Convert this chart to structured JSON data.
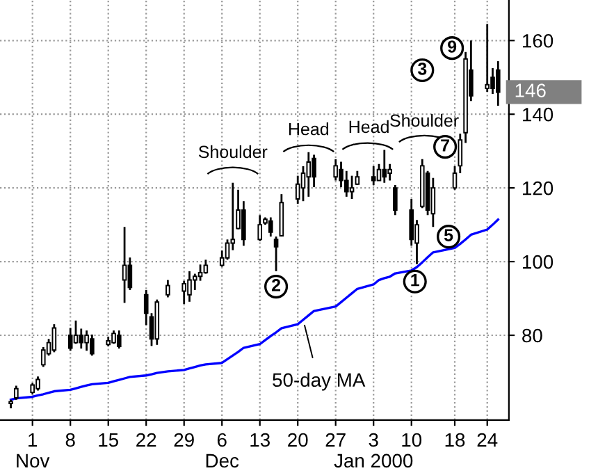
{
  "chart_data": {
    "type": "candlestick",
    "x": [
      "1999-10-28",
      "1999-10-29",
      "1999-11-01",
      "1999-11-02",
      "1999-11-03",
      "1999-11-04",
      "1999-11-05",
      "1999-11-08",
      "1999-11-09",
      "1999-11-10",
      "1999-11-11",
      "1999-11-12",
      "1999-11-15",
      "1999-11-16",
      "1999-11-17",
      "1999-11-18",
      "1999-11-19",
      "1999-11-22",
      "1999-11-23",
      "1999-11-24",
      "1999-11-26",
      "1999-11-29",
      "1999-11-30",
      "1999-12-01",
      "1999-12-02",
      "1999-12-03",
      "1999-12-06",
      "1999-12-07",
      "1999-12-08",
      "1999-12-09",
      "1999-12-10",
      "1999-12-13",
      "1999-12-14",
      "1999-12-15",
      "1999-12-16",
      "1999-12-17",
      "1999-12-20",
      "1999-12-21",
      "1999-12-22",
      "1999-12-23",
      "1999-12-27",
      "1999-12-28",
      "1999-12-29",
      "1999-12-30",
      "1999-12-31",
      "2000-01-03",
      "2000-01-04",
      "2000-01-05",
      "2000-01-06",
      "2000-01-07",
      "2000-01-10",
      "2000-01-11",
      "2000-01-12",
      "2000-01-13",
      "2000-01-14",
      "2000-01-18",
      "2000-01-19",
      "2000-01-20",
      "2000-01-21",
      "2000-01-24",
      "2000-01-25",
      "2000-01-26"
    ],
    "ohlc": [
      [
        61.5,
        62.5,
        60.2,
        62
      ],
      [
        63,
        66.3,
        62.5,
        65.5
      ],
      [
        64.5,
        67,
        64,
        66.5
      ],
      [
        65.5,
        68.8,
        65,
        68
      ],
      [
        72,
        76.8,
        71.4,
        76
      ],
      [
        75,
        79,
        74.5,
        78
      ],
      [
        76,
        83,
        75.4,
        82
      ],
      [
        80,
        82,
        75.8,
        76.5
      ],
      [
        78,
        84,
        77.7,
        80
      ],
      [
        80,
        81.8,
        76.4,
        78
      ],
      [
        78,
        81.3,
        75.8,
        80
      ],
      [
        79,
        80.2,
        74.5,
        75
      ],
      [
        77.5,
        79.6,
        77,
        78.5
      ],
      [
        78,
        81.3,
        77.7,
        80.5
      ],
      [
        80,
        81.3,
        76.4,
        77
      ],
      [
        95,
        109.4,
        88.8,
        99
      ],
      [
        99,
        101.1,
        92.3,
        93
      ],
      [
        91,
        92.3,
        82.8,
        86
      ],
      [
        85,
        86,
        77.1,
        79
      ],
      [
        79,
        89.7,
        77.4,
        89
      ],
      [
        91,
        95,
        90.3,
        93.5
      ],
      [
        92,
        94.8,
        88.5,
        94
      ],
      [
        91,
        97.4,
        89.1,
        95
      ],
      [
        95,
        96.7,
        92.3,
        96
      ],
      [
        96,
        99.2,
        94.8,
        97
      ],
      [
        97,
        100.5,
        96.7,
        99
      ],
      [
        99,
        103,
        98.6,
        101
      ],
      [
        101,
        106,
        100.5,
        105
      ],
      [
        105,
        121.4,
        103.1,
        106
      ],
      [
        109,
        119.5,
        108.8,
        114
      ],
      [
        114,
        116.4,
        104.3,
        106
      ],
      [
        106,
        112.6,
        105.6,
        110
      ],
      [
        110.5,
        112,
        110,
        111.5
      ],
      [
        111,
        112,
        106.8,
        108
      ],
      [
        106,
        106.8,
        97.4,
        104
      ],
      [
        107,
        118.3,
        106.8,
        116
      ],
      [
        117,
        123.3,
        115.7,
        121
      ],
      [
        120,
        125.9,
        116.4,
        124
      ],
      [
        123,
        129.7,
        117.6,
        127
      ],
      [
        128,
        129,
        120.2,
        123
      ],
      [
        123,
        127.8,
        122,
        126
      ],
      [
        125,
        127.1,
        120.2,
        122
      ],
      [
        122,
        124.6,
        117.6,
        119
      ],
      [
        119,
        123.3,
        117,
        120
      ],
      [
        121,
        124.6,
        120.8,
        123
      ],
      [
        123,
        125.9,
        120.8,
        122
      ],
      [
        122,
        126.5,
        122,
        125
      ],
      [
        125,
        130.3,
        121.4,
        123
      ],
      [
        124,
        126.5,
        122,
        125
      ],
      [
        120,
        120.8,
        112.6,
        114
      ],
      [
        114,
        117,
        104.3,
        106
      ],
      [
        105,
        111.3,
        99.3,
        110
      ],
      [
        115,
        127.8,
        114.5,
        126
      ],
      [
        124,
        124.6,
        112.6,
        114
      ],
      [
        113,
        122.7,
        109.4,
        120
      ],
      [
        120,
        125.9,
        119.5,
        124
      ],
      [
        126,
        134.7,
        124,
        133
      ],
      [
        135,
        156.9,
        132.2,
        155
      ],
      [
        152,
        160,
        143.6,
        145
      ],
      [
        147,
        164.5,
        146.1,
        148
      ],
      [
        150,
        152.5,
        145.5,
        147
      ],
      [
        152,
        154.4,
        142.3,
        146
      ]
    ],
    "color": "#000000",
    "series": [
      {
        "type": "line",
        "color": "#0000ff",
        "values": [
          62.5,
          62.9,
          63.3,
          63.7,
          64.0,
          64.4,
          64.8,
          65.2,
          65.6,
          66.0,
          66.4,
          66.7,
          67.1,
          67.5,
          67.9,
          68.3,
          68.7,
          69.1,
          69.4,
          69.8,
          70.2,
          70.6,
          71.0,
          71.4,
          71.8,
          72.1,
          72.5,
          73.5,
          74.5,
          75.5,
          76.6,
          77.6,
          78.7,
          79.8,
          80.8,
          81.9,
          83.0,
          84.2,
          85.4,
          86.6,
          87.8,
          89.0,
          90.2,
          91.4,
          92.6,
          93.8,
          95.0,
          95.5,
          95.9,
          96.8,
          97.6,
          98.5,
          99.8,
          101.2,
          102.5,
          103.7,
          104.8,
          106.0,
          107.3,
          108.7,
          110.0,
          111.4
        ]
      }
    ],
    "xlim": [
      "1999-10-26",
      "2000-01-28"
    ],
    "xticks": [
      {
        "value": "1999-11-01",
        "label": "1\nNov"
      },
      {
        "value": "1999-11-08",
        "label": "8"
      },
      {
        "value": "1999-11-15",
        "label": "15"
      },
      {
        "value": "1999-11-22",
        "label": "22"
      },
      {
        "value": "1999-11-29",
        "label": "29"
      },
      {
        "value": "1999-12-06",
        "label": "6\nDec"
      },
      {
        "value": "1999-12-13",
        "label": "13"
      },
      {
        "value": "1999-12-20",
        "label": "20"
      },
      {
        "value": "1999-12-27",
        "label": "27"
      },
      {
        "value": "2000-01-03",
        "label": "3\nJan 2000"
      },
      {
        "value": "2000-01-10",
        "label": "10"
      },
      {
        "value": "2000-01-18",
        "label": "18"
      },
      {
        "value": "2000-01-24",
        "label": "24"
      }
    ],
    "ylim": [
      57,
      171
    ],
    "yticks": [
      80,
      100,
      120,
      140,
      160
    ],
    "grid": true,
    "annotations": [
      {
        "text": "Shoulder",
        "x": "1999-12-08",
        "y": 121.4
      },
      {
        "text": "Head",
        "x": "1999-12-22",
        "y": 129.7
      },
      {
        "text": "Head",
        "x": "2000-01-05",
        "y": 130.3
      },
      {
        "text": "Shoulder",
        "x": "2000-01-12",
        "y": 127.8
      },
      {
        "text": "1",
        "x": "2000-01-11",
        "y": 99.3
      },
      {
        "text": "2",
        "x": "1999-12-16",
        "y": 97.4
      },
      "3",
      {
        "text": "5",
        "x": "2000-01-14",
        "y": 109.4
      },
      {
        "text": "7",
        "x": "2000-01-18",
        "y": 125.9
      },
      {
        "text": "9",
        "x": "2000-01-20",
        "y": 156.9
      },
      {
        "text": "50-day MA",
        "x": "1999-12-21",
        "y": 84.2
      },
      {
        "text": "146",
        "x": "2000-01-26",
        "y": 146
      }
    ]
  }
}
